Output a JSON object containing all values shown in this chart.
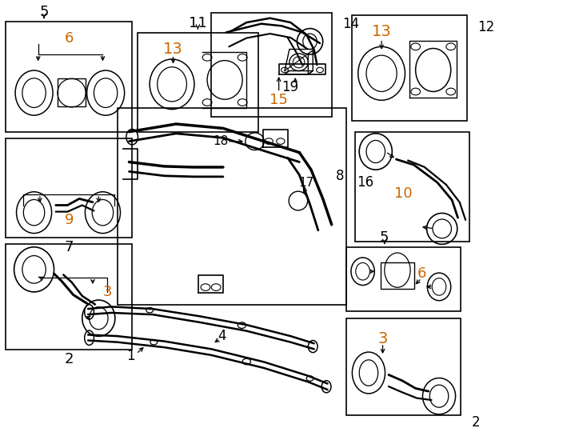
{
  "bg_color": "#ffffff",
  "box_color": "#000000",
  "orange": "#cc6600",
  "black": "#000000",
  "boxes": {
    "b1": [
      0.01,
      0.695,
      0.215,
      0.255
    ],
    "b2": [
      0.235,
      0.695,
      0.205,
      0.23
    ],
    "b3": [
      0.36,
      0.73,
      0.205,
      0.24
    ],
    "b4": [
      0.6,
      0.72,
      0.195,
      0.245
    ],
    "b5": [
      0.01,
      0.45,
      0.215,
      0.23
    ],
    "b6": [
      0.2,
      0.295,
      0.39,
      0.455
    ],
    "b7": [
      0.605,
      0.44,
      0.195,
      0.255
    ],
    "b8": [
      0.01,
      0.19,
      0.215,
      0.245
    ],
    "b9": [
      0.59,
      0.28,
      0.195,
      0.148
    ],
    "b10": [
      0.59,
      0.038,
      0.195,
      0.225
    ]
  }
}
